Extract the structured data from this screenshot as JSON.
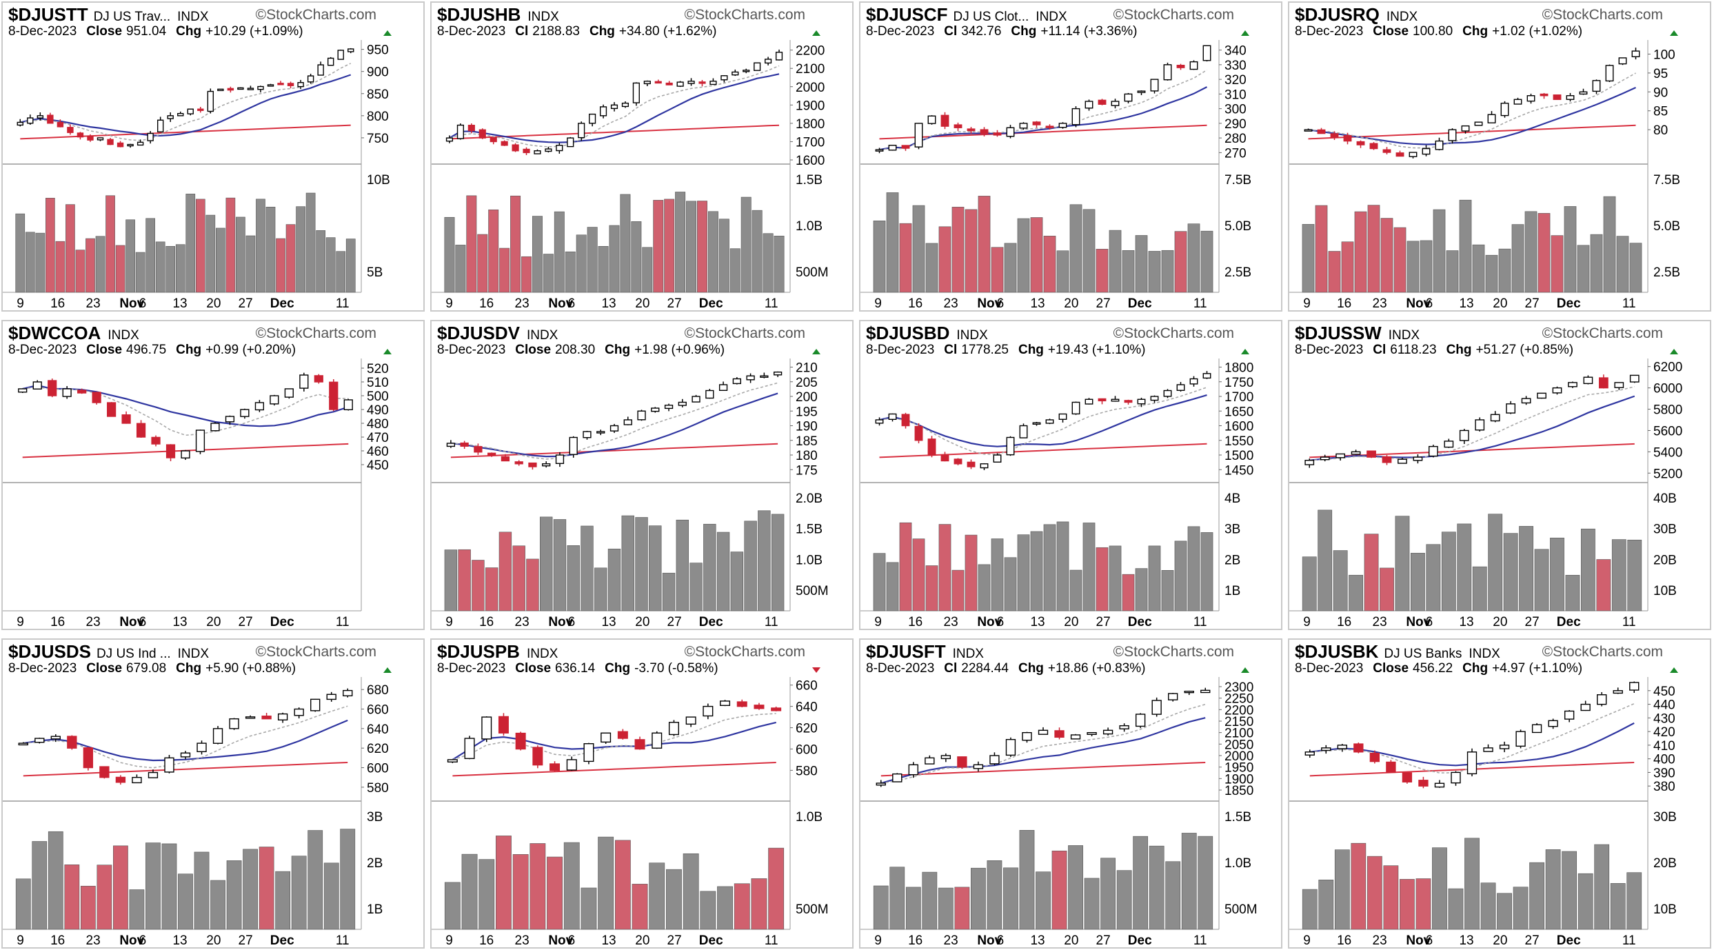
{
  "colors": {
    "up": "#000000",
    "down": "#cc2233",
    "vol_up": "#8c8c8c",
    "vol_down": "#d0606e",
    "sma50": "#2e35a0",
    "sma200": "#d83040",
    "ema10": "#a8a8a8",
    "watermark": "#555555"
  },
  "watermark": "StockCharts.com",
  "x_labels": [
    "9",
    "16",
    "23",
    "Nov",
    "6",
    "13",
    "20",
    "27",
    "Dec",
    "11"
  ],
  "chart_data": [
    {
      "type": "candlestick",
      "symbol": "$DJUSTT",
      "name": "DJ US Trav...",
      "exchange": "INDX",
      "date": "8-Dec-2023",
      "close_label": "Close",
      "close": "951.04",
      "chg_label": "Chg",
      "chg": "+10.29 (+1.09%)",
      "dir": "up",
      "yticks": [
        950,
        900,
        850,
        800,
        750
      ],
      "ylim": [
        700,
        965
      ],
      "vol_ticks": [
        "10B",
        "5B"
      ],
      "closes": [
        785,
        795,
        800,
        783,
        775,
        762,
        752,
        745,
        750,
        735,
        730,
        735,
        740,
        760,
        790,
        800,
        805,
        815,
        812,
        855,
        860,
        858,
        863,
        862,
        866,
        870,
        872,
        868,
        875,
        890,
        915,
        930,
        948,
        951
      ]
    },
    {
      "type": "candlestick",
      "symbol": "$DJUSHB",
      "name": "",
      "exchange": "INDX",
      "date": "8-Dec-2023",
      "close_label": "Cl",
      "close": "2188.83",
      "chg_label": "Chg",
      "chg": "+34.80 (+1.62%)",
      "dir": "up",
      "yticks": [
        2200,
        2100,
        2000,
        1900,
        1800,
        1700,
        1600
      ],
      "ylim": [
        1600,
        2240
      ],
      "vol_ticks": [
        "1.5B",
        "1.0B",
        "500M"
      ],
      "closes": [
        1720,
        1790,
        1760,
        1720,
        1700,
        1680,
        1650,
        1640,
        1650,
        1660,
        1680,
        1720,
        1800,
        1850,
        1890,
        1900,
        1910,
        2020,
        2030,
        2020,
        2010,
        2025,
        2030,
        2020,
        2030,
        2060,
        2080,
        2090,
        2130,
        2150,
        2188
      ]
    },
    {
      "type": "candlestick",
      "symbol": "$DJUSCF",
      "name": "DJ US Clot...",
      "exchange": "INDX",
      "date": "8-Dec-2023",
      "close_label": "Cl",
      "close": "342.76",
      "chg_label": "Chg",
      "chg": "+11.14 (+3.36%)",
      "dir": "up",
      "yticks": [
        340,
        330,
        320,
        310,
        300,
        290,
        280,
        270
      ],
      "ylim": [
        265,
        345
      ],
      "vol_ticks": [
        "7.5B",
        "5.0B",
        "2.5B"
      ],
      "closes": [
        272,
        275,
        273,
        290,
        295,
        288,
        287,
        285,
        283,
        282,
        287,
        290,
        289,
        288,
        290,
        300,
        305,
        303,
        305,
        310,
        312,
        320,
        330,
        328,
        332,
        343
      ]
    },
    {
      "type": "candlestick",
      "symbol": "$DJUSRQ",
      "name": "",
      "exchange": "INDX",
      "date": "8-Dec-2023",
      "close_label": "Close",
      "close": "100.80",
      "chg_label": "Chg",
      "chg": "+1.02 (+1.02%)",
      "dir": "up",
      "yticks": [
        100,
        95,
        90,
        85,
        80
      ],
      "ylim": [
        72,
        103
      ],
      "vol_ticks": [
        "7.5B",
        "5.0B",
        "2.5B"
      ],
      "closes": [
        80,
        79,
        78,
        77,
        76,
        75,
        74,
        73,
        74,
        75,
        77,
        80,
        81,
        82,
        84,
        87,
        88,
        89,
        89,
        88,
        89,
        90,
        93,
        97,
        99,
        100.8
      ]
    },
    {
      "type": "candlestick",
      "symbol": "$DWCCOA",
      "name": "",
      "exchange": "INDX",
      "date": "8-Dec-2023",
      "close_label": "Close",
      "close": "496.75",
      "chg_label": "Chg",
      "chg": "+0.99 (+0.20%)",
      "dir": "up",
      "yticks": [
        520,
        510,
        500,
        490,
        480,
        470,
        460,
        450
      ],
      "ylim": [
        440,
        525
      ],
      "vol_ticks": [],
      "closes": [
        505,
        510,
        500,
        505,
        502,
        495,
        485,
        480,
        470,
        465,
        455,
        460,
        475,
        480,
        485,
        490,
        495,
        500,
        505,
        515,
        510,
        490,
        497
      ]
    },
    {
      "type": "candlestick",
      "symbol": "$DJUSDV",
      "name": "",
      "exchange": "INDX",
      "date": "8-Dec-2023",
      "close_label": "Close",
      "close": "208.30",
      "chg_label": "Chg",
      "chg": "+1.98 (+0.96%)",
      "dir": "up",
      "yticks": [
        210,
        205,
        200,
        195,
        190,
        185,
        180,
        175
      ],
      "ylim": [
        172,
        212
      ],
      "vol_ticks": [
        "2.0B",
        "1.5B",
        "1.0B",
        "500M"
      ],
      "closes": [
        184,
        183,
        181,
        180,
        178,
        177,
        176,
        177,
        180,
        186,
        188,
        188,
        190,
        192,
        195,
        196,
        197,
        198,
        200,
        202,
        204,
        206,
        207,
        207,
        208.3
      ]
    },
    {
      "type": "candlestick",
      "symbol": "$DJUSBD",
      "name": "",
      "exchange": "INDX",
      "date": "8-Dec-2023",
      "close_label": "Cl",
      "close": "1778.25",
      "chg_label": "Chg",
      "chg": "+19.43 (+1.10%)",
      "dir": "up",
      "yticks": [
        1800,
        1750,
        1700,
        1650,
        1600,
        1550,
        1500,
        1450
      ],
      "ylim": [
        1420,
        1820
      ],
      "vol_ticks": [
        "4B",
        "3B",
        "2B",
        "1B"
      ],
      "closes": [
        1620,
        1640,
        1600,
        1550,
        1500,
        1480,
        1470,
        1460,
        1470,
        1500,
        1560,
        1600,
        1610,
        1620,
        1640,
        1680,
        1690,
        1685,
        1690,
        1680,
        1690,
        1700,
        1720,
        1740,
        1760,
        1778
      ]
    },
    {
      "type": "candlestick",
      "symbol": "$DJUSSW",
      "name": "",
      "exchange": "INDX",
      "date": "8-Dec-2023",
      "close_label": "Cl",
      "close": "6118.23",
      "chg_label": "Chg",
      "chg": "+51.27 (+0.85%)",
      "dir": "up",
      "yticks": [
        6200,
        6000,
        5800,
        5600,
        5400,
        5200
      ],
      "ylim": [
        5150,
        6250
      ],
      "vol_ticks": [
        "40B",
        "30B",
        "20B",
        "10B"
      ],
      "closes": [
        5320,
        5350,
        5380,
        5400,
        5350,
        5300,
        5330,
        5350,
        5450,
        5500,
        5600,
        5700,
        5750,
        5850,
        5900,
        5950,
        6000,
        6050,
        6100,
        6000,
        6050,
        6118
      ]
    },
    {
      "type": "candlestick",
      "symbol": "$DJUSDS",
      "name": "DJ US Ind ...",
      "exchange": "INDX",
      "date": "8-Dec-2023",
      "close_label": "Close",
      "close": "679.08",
      "chg_label": "Chg",
      "chg": "+5.90 (+0.88%)",
      "dir": "up",
      "yticks": [
        680,
        660,
        640,
        620,
        600,
        580
      ],
      "ylim": [
        570,
        690
      ],
      "vol_ticks": [
        "3B",
        "2B",
        "1B"
      ],
      "closes": [
        625,
        630,
        632,
        620,
        600,
        590,
        585,
        590,
        595,
        610,
        615,
        625,
        640,
        650,
        652,
        650,
        655,
        660,
        670,
        675,
        679
      ]
    },
    {
      "type": "candlestick",
      "symbol": "$DJUSPB",
      "name": "",
      "exchange": "INDX",
      "date": "8-Dec-2023",
      "close_label": "Close",
      "close": "636.14",
      "chg_label": "Chg",
      "chg": "-3.70 (-0.58%)",
      "dir": "down",
      "yticks": [
        660,
        640,
        620,
        600,
        580
      ],
      "ylim": [
        555,
        665
      ],
      "vol_ticks": [
        "1.0B",
        "500M"
      ],
      "closes": [
        590,
        610,
        630,
        615,
        600,
        585,
        580,
        590,
        605,
        615,
        610,
        600,
        615,
        625,
        630,
        640,
        645,
        640,
        638,
        636
      ]
    },
    {
      "type": "candlestick",
      "symbol": "$DJUSFT",
      "name": "",
      "exchange": "INDX",
      "date": "8-Dec-2023",
      "close_label": "Cl",
      "close": "2284.44",
      "chg_label": "Chg",
      "chg": "+18.86 (+0.83%)",
      "dir": "up",
      "yticks": [
        2300,
        2250,
        2200,
        2150,
        2100,
        2050,
        2000,
        1950,
        1900,
        1850
      ],
      "ylim": [
        1820,
        2330
      ],
      "vol_ticks": [
        "1.5B",
        "1.0B",
        "500M"
      ],
      "closes": [
        1880,
        1920,
        1960,
        1990,
        2000,
        1950,
        1960,
        2000,
        2070,
        2100,
        2110,
        2080,
        2090,
        2100,
        2110,
        2130,
        2180,
        2240,
        2270,
        2280,
        2284
      ]
    },
    {
      "type": "candlestick",
      "symbol": "$DJUSBK",
      "name": "DJ US Banks",
      "exchange": "INDX",
      "date": "8-Dec-2023",
      "close_label": "Close",
      "close": "456.22",
      "chg_label": "Chg",
      "chg": "+4.97 (+1.10%)",
      "dir": "up",
      "yticks": [
        450,
        440,
        430,
        420,
        410,
        400,
        390,
        380
      ],
      "ylim": [
        372,
        458
      ],
      "vol_ticks": [
        "30B",
        "20B",
        "10B"
      ],
      "closes": [
        405,
        408,
        410,
        405,
        398,
        390,
        383,
        380,
        382,
        390,
        405,
        408,
        410,
        420,
        425,
        428,
        435,
        440,
        447,
        450,
        456
      ]
    }
  ]
}
